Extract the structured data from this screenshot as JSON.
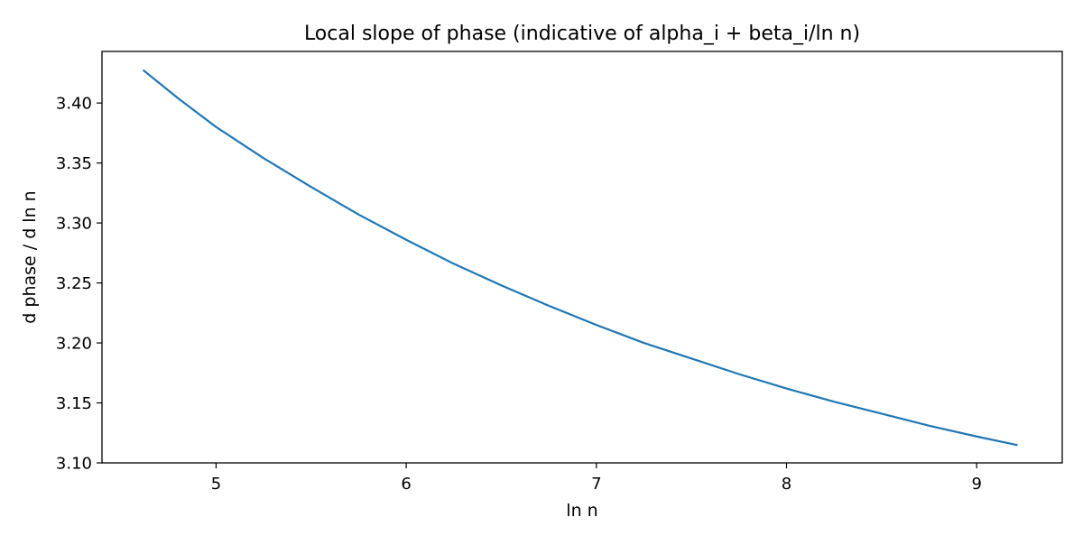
{
  "chart_data": {
    "type": "line",
    "title": "Local slope of phase (indicative of alpha_i + beta_i/ln n)",
    "xlabel": "ln n",
    "ylabel": "d phase / d ln n",
    "xlim": [
      4.4,
      9.45
    ],
    "ylim": [
      3.1,
      3.443
    ],
    "xticks": [
      5,
      6,
      7,
      8,
      9
    ],
    "xtick_labels": [
      "5",
      "6",
      "7",
      "8",
      "9"
    ],
    "yticks": [
      3.1,
      3.15,
      3.2,
      3.25,
      3.3,
      3.35,
      3.4
    ],
    "ytick_labels": [
      "3.10",
      "3.15",
      "3.20",
      "3.25",
      "3.30",
      "3.35",
      "3.40"
    ],
    "grid": false,
    "series": [
      {
        "color": "#1f77b4",
        "x": [
          4.62,
          4.8,
          5.0,
          5.25,
          5.5,
          5.75,
          6.0,
          6.25,
          6.5,
          6.75,
          7.0,
          7.25,
          7.5,
          7.75,
          8.0,
          8.25,
          8.5,
          8.75,
          9.0,
          9.21
        ],
        "y": [
          3.427,
          3.404,
          3.38,
          3.354,
          3.33,
          3.307,
          3.286,
          3.266,
          3.248,
          3.231,
          3.215,
          3.2,
          3.187,
          3.174,
          3.162,
          3.151,
          3.141,
          3.131,
          3.122,
          3.115
        ]
      }
    ]
  }
}
